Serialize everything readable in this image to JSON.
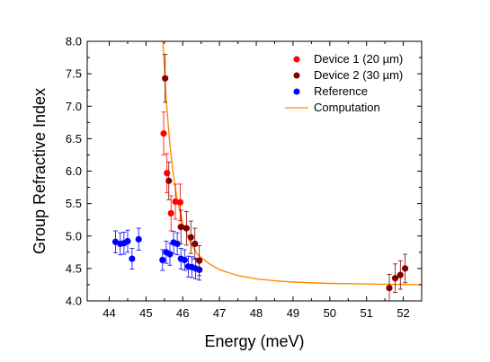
{
  "chart_data": {
    "type": "scatter",
    "xlabel": "Energy (meV)",
    "ylabel": "Group Refractive Index",
    "xlim": [
      43.4,
      52.5
    ],
    "ylim": [
      4.0,
      8.0
    ],
    "x_ticks": [
      44,
      45,
      46,
      47,
      48,
      49,
      50,
      51,
      52
    ],
    "y_ticks": [
      4.0,
      4.5,
      5.0,
      5.5,
      6.0,
      6.5,
      7.0,
      7.5,
      8.0
    ],
    "x_tick_labels": [
      "44",
      "45",
      "46",
      "47",
      "48",
      "49",
      "50",
      "51",
      "52"
    ],
    "y_tick_labels": [
      "4.0",
      "4.5",
      "5.0",
      "5.5",
      "6.0",
      "6.5",
      "7.0",
      "7.5",
      "8.0"
    ],
    "legend_position": "top-right",
    "grid": false,
    "series": [
      {
        "name": "Device 1 (20 µm)",
        "kind": "scatter",
        "color": "#ff0000",
        "points": [
          {
            "x": 45.48,
            "y": 6.58,
            "err": 0.33
          },
          {
            "x": 45.57,
            "y": 5.97,
            "err": 0.3
          },
          {
            "x": 45.68,
            "y": 5.35,
            "err": 0.27
          },
          {
            "x": 45.8,
            "y": 5.53,
            "err": 0.27
          },
          {
            "x": 45.93,
            "y": 5.52,
            "err": 0.28
          }
        ]
      },
      {
        "name": "Device 2 (30 µm)",
        "kind": "scatter",
        "color": "#7f0000",
        "points": [
          {
            "x": 45.52,
            "y": 7.43,
            "err": 0.37
          },
          {
            "x": 45.62,
            "y": 5.85,
            "err": 0.29
          },
          {
            "x": 45.95,
            "y": 5.14,
            "err": 0.26
          },
          {
            "x": 46.1,
            "y": 5.12,
            "err": 0.26
          },
          {
            "x": 46.22,
            "y": 4.98,
            "err": 0.25
          },
          {
            "x": 46.33,
            "y": 4.88,
            "err": 0.24
          },
          {
            "x": 46.45,
            "y": 4.62,
            "err": 0.23
          },
          {
            "x": 51.62,
            "y": 4.2,
            "err": 0.21
          },
          {
            "x": 51.78,
            "y": 4.35,
            "err": 0.22
          },
          {
            "x": 51.92,
            "y": 4.4,
            "err": 0.22
          },
          {
            "x": 52.05,
            "y": 4.5,
            "err": 0.22
          }
        ]
      },
      {
        "name": "Reference",
        "kind": "scatter",
        "color": "#0000ff",
        "points": [
          {
            "x": 44.17,
            "y": 4.91,
            "err": 0.17
          },
          {
            "x": 44.3,
            "y": 4.88,
            "err": 0.17
          },
          {
            "x": 44.4,
            "y": 4.89,
            "err": 0.17
          },
          {
            "x": 44.5,
            "y": 4.92,
            "err": 0.17
          },
          {
            "x": 44.62,
            "y": 4.65,
            "err": 0.16
          },
          {
            "x": 44.8,
            "y": 4.95,
            "err": 0.17
          },
          {
            "x": 45.45,
            "y": 4.63,
            "err": 0.16
          },
          {
            "x": 45.55,
            "y": 4.75,
            "err": 0.17
          },
          {
            "x": 45.65,
            "y": 4.72,
            "err": 0.17
          },
          {
            "x": 45.75,
            "y": 4.9,
            "err": 0.17
          },
          {
            "x": 45.85,
            "y": 4.88,
            "err": 0.17
          },
          {
            "x": 45.95,
            "y": 4.65,
            "err": 0.16
          },
          {
            "x": 46.05,
            "y": 4.63,
            "err": 0.16
          },
          {
            "x": 46.15,
            "y": 4.53,
            "err": 0.16
          },
          {
            "x": 46.25,
            "y": 4.52,
            "err": 0.16
          },
          {
            "x": 46.35,
            "y": 4.5,
            "err": 0.16
          },
          {
            "x": 46.45,
            "y": 4.48,
            "err": 0.16
          }
        ]
      },
      {
        "name": "Computation",
        "kind": "line",
        "color": "#ff8c00",
        "points": [
          {
            "x": 45.46,
            "y": 8.0
          },
          {
            "x": 45.55,
            "y": 7.1
          },
          {
            "x": 45.65,
            "y": 6.4
          },
          {
            "x": 45.75,
            "y": 5.9
          },
          {
            "x": 45.85,
            "y": 5.55
          },
          {
            "x": 46.0,
            "y": 5.2
          },
          {
            "x": 46.2,
            "y": 4.9
          },
          {
            "x": 46.4,
            "y": 4.72
          },
          {
            "x": 46.7,
            "y": 4.58
          },
          {
            "x": 47.0,
            "y": 4.48
          },
          {
            "x": 47.5,
            "y": 4.39
          },
          {
            "x": 48.0,
            "y": 4.34
          },
          {
            "x": 48.5,
            "y": 4.31
          },
          {
            "x": 49.0,
            "y": 4.29
          },
          {
            "x": 50.0,
            "y": 4.27
          },
          {
            "x": 51.0,
            "y": 4.26
          },
          {
            "x": 52.5,
            "y": 4.25
          }
        ]
      }
    ]
  }
}
